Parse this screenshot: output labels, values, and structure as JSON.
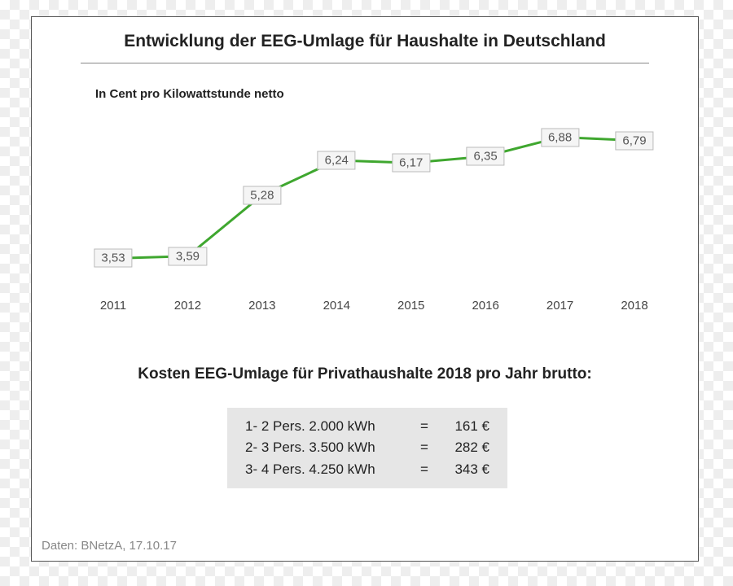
{
  "title": "Entwicklung der EEG-Umlage für Haushalte in Deutschland",
  "title_fontsize": 21,
  "subtitle": "In Cent pro Kilowattstunde netto",
  "subtitle_fontsize": 15,
  "chart": {
    "type": "line",
    "line_color": "#3fa72f",
    "line_width": 3,
    "label_bg": "#f5f5f5",
    "label_border": "#bbbbbb",
    "label_text_color": "#555555",
    "background_color": "#ffffff",
    "years": [
      "2011",
      "2012",
      "2013",
      "2014",
      "2015",
      "2016",
      "2017",
      "2018"
    ],
    "values": [
      3.53,
      3.59,
      5.28,
      6.24,
      6.17,
      6.35,
      6.88,
      6.79
    ],
    "value_labels": [
      "3,53",
      "3,59",
      "5,28",
      "6,24",
      "6,17",
      "6,35",
      "6,88",
      "6,79"
    ],
    "ylim": [
      3.0,
      7.5
    ],
    "x_padding": 30,
    "axis_label_fontsize": 15
  },
  "costs": {
    "heading": "Kosten EEG-Umlage für Privathaushalte 2018 pro Jahr brutto:",
    "heading_fontsize": 19,
    "table_bg": "#e6e6e6",
    "rows": [
      {
        "desc": "1- 2 Pers. 2.000 kWh",
        "eq": "=",
        "val": "161 €"
      },
      {
        "desc": "2- 3 Pers. 3.500 kWh",
        "eq": "=",
        "val": "282 €"
      },
      {
        "desc": "3- 4 Pers. 4.250 kWh",
        "eq": "=",
        "val": "343 €"
      }
    ],
    "row_fontsize": 17
  },
  "source": "Daten: BNetzA, 17.10.17",
  "source_color": "#888888"
}
